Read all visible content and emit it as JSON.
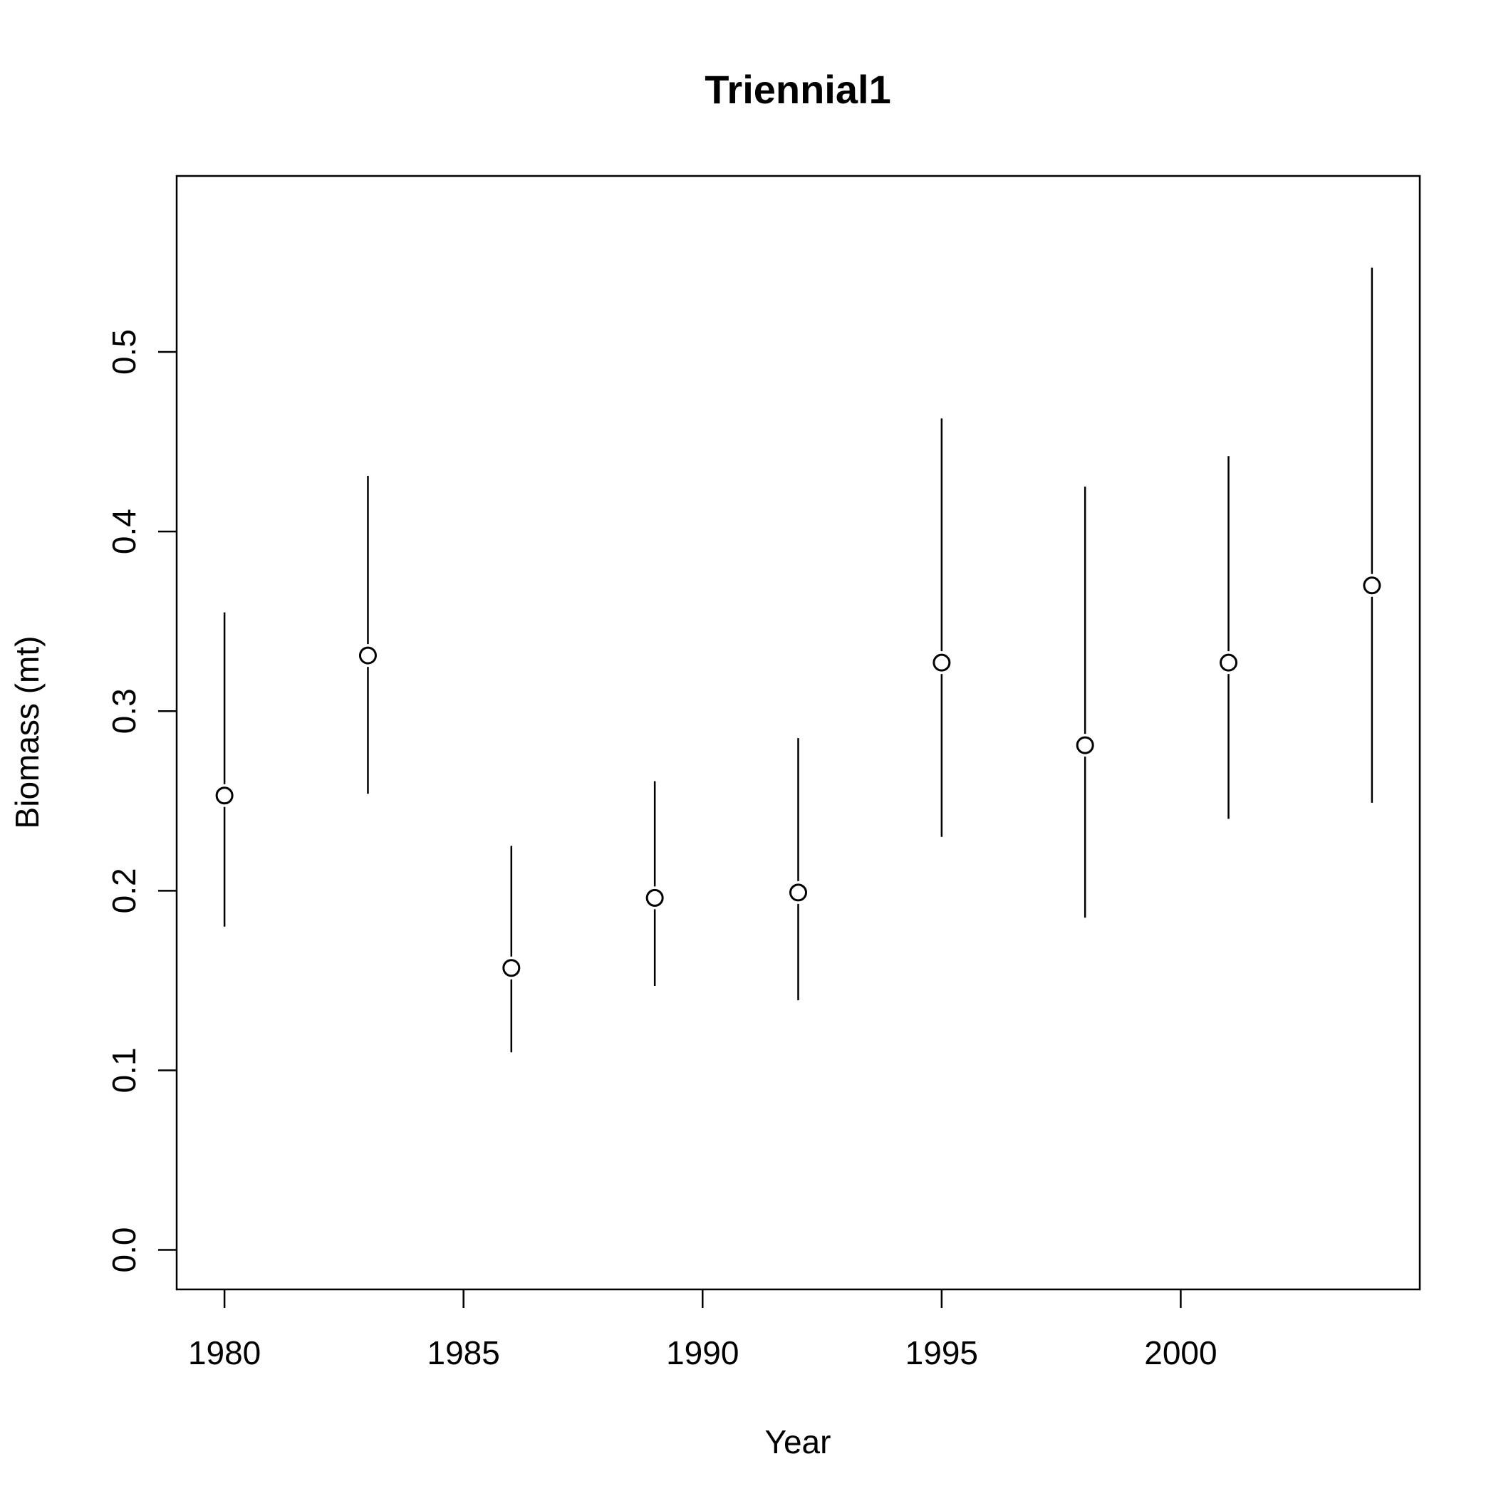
{
  "chart_data": {
    "type": "scatter",
    "title": "Triennial1",
    "xlabel": "Year",
    "ylabel": "Biomass (mt)",
    "xlim": [
      1979,
      2005
    ],
    "ylim": [
      -0.022,
      0.598
    ],
    "x_ticks": [
      "1980",
      "1985",
      "1990",
      "1995",
      "2000"
    ],
    "y_ticks": [
      "0.0",
      "0.1",
      "0.2",
      "0.3",
      "0.4",
      "0.5"
    ],
    "grid": false,
    "legend": "none",
    "points": [
      {
        "year": 1980,
        "value": 0.253,
        "lower": 0.18,
        "upper": 0.355
      },
      {
        "year": 1983,
        "value": 0.331,
        "lower": 0.254,
        "upper": 0.431
      },
      {
        "year": 1986,
        "value": 0.157,
        "lower": 0.11,
        "upper": 0.225
      },
      {
        "year": 1989,
        "value": 0.196,
        "lower": 0.147,
        "upper": 0.261
      },
      {
        "year": 1992,
        "value": 0.199,
        "lower": 0.139,
        "upper": 0.285
      },
      {
        "year": 1995,
        "value": 0.327,
        "lower": 0.23,
        "upper": 0.463
      },
      {
        "year": 1998,
        "value": 0.281,
        "lower": 0.185,
        "upper": 0.425
      },
      {
        "year": 2001,
        "value": 0.327,
        "lower": 0.24,
        "upper": 0.442
      },
      {
        "year": 2004,
        "value": 0.37,
        "lower": 0.249,
        "upper": 0.547
      }
    ]
  }
}
